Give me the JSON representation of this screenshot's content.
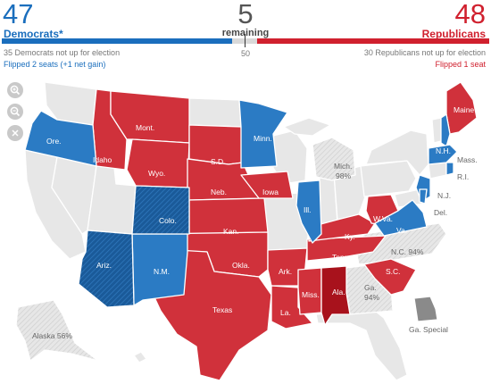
{
  "header": {
    "dem_count": "47",
    "dem_label": "Democrats*",
    "remaining_count": "5",
    "remaining_label": "remaining",
    "rep_count": "48",
    "rep_label": "Republicans",
    "majority_mark": "50",
    "dem_note": "35 Democrats not up for election",
    "rep_note": "30 Republicans not up for election",
    "dem_flip": "Flipped 2 seats (+1 net gain)",
    "rep_flip": "Flipped 1 seat"
  },
  "controls": {
    "zoom_in_icon": "magnifier-plus-icon",
    "zoom_out_icon": "magnifier-minus-icon",
    "close_icon": "close-icon"
  },
  "colors": {
    "democrat": "#2b7bc4",
    "republican": "#d0313b",
    "republican_dark": "#9e1620",
    "pending": "#e7e7e7",
    "special": "#8a8a8a"
  },
  "states": {
    "ore": "Ore.",
    "idaho": "Idaho",
    "mont": "Mont.",
    "wyo": "Wyo.",
    "sd": "S.D.",
    "minn": "Minn.",
    "mich": "Mich.",
    "mich_pct": "98%",
    "maine": "Maine",
    "nh": "N.H.",
    "mass": "Mass.",
    "ri": "R.I.",
    "nj": "N.J.",
    "del": "Del.",
    "neb": "Neb.",
    "iowa": "Iowa",
    "ill": "Ill.",
    "colo": "Colo.",
    "kan": "Kan.",
    "ky": "Ky.",
    "wva": "W.Va.",
    "va": "Va.",
    "nc": "N.C. 94%",
    "tenn": "Tenn.",
    "ariz": "Ariz.",
    "nm": "N.M.",
    "okla": "Okla.",
    "ark": "Ark.",
    "sc": "S.C.",
    "ala": "Ala.",
    "ga": "Ga.",
    "ga_pct": "94%",
    "miss": "Miss.",
    "la": "La.",
    "texas": "Texas",
    "alaska": "Alaska 56%",
    "ga_special": "Ga. Special"
  }
}
